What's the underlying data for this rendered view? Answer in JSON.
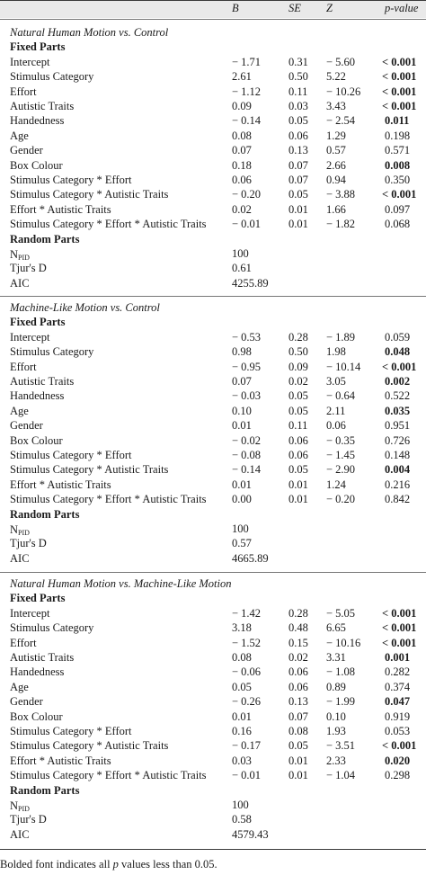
{
  "headers": {
    "b": "B",
    "se": "SE",
    "z": "Z",
    "p": "p-value"
  },
  "fixed_parts_label": "Fixed Parts",
  "random_parts_label": "Random Parts",
  "npid": {
    "main": "N",
    "sub": "PID"
  },
  "tjur_label": "Tjur's D",
  "aic_label": "AIC",
  "sections": [
    {
      "title": "Natural Human Motion vs. Control",
      "rows": [
        {
          "label": "Intercept",
          "b": "− 1.71",
          "se": "0.31",
          "z": "− 5.60",
          "p": "< 0.001",
          "bold": true
        },
        {
          "label": "Stimulus Category",
          "b": "2.61",
          "se": "0.50",
          "z": "5.22",
          "p": "< 0.001",
          "bold": true
        },
        {
          "label": "Effort",
          "b": "− 1.12",
          "se": "0.11",
          "z": "− 10.26",
          "p": "< 0.001",
          "bold": true
        },
        {
          "label": "Autistic Traits",
          "b": "0.09",
          "se": "0.03",
          "z": "3.43",
          "p": "< 0.001",
          "bold": true
        },
        {
          "label": "Handedness",
          "b": "− 0.14",
          "se": "0.05",
          "z": "− 2.54",
          "p": "0.011",
          "bold": true
        },
        {
          "label": "Age",
          "b": "0.08",
          "se": "0.06",
          "z": "1.29",
          "p": "0.198",
          "bold": false
        },
        {
          "label": "Gender",
          "b": "0.07",
          "se": "0.13",
          "z": "0.57",
          "p": "0.571",
          "bold": false
        },
        {
          "label": "Box Colour",
          "b": "0.18",
          "se": "0.07",
          "z": "2.66",
          "p": "0.008",
          "bold": true
        },
        {
          "label": "Stimulus Category * Effort",
          "b": "0.06",
          "se": "0.07",
          "z": "0.94",
          "p": "0.350",
          "bold": false
        },
        {
          "label": "Stimulus Category * Autistic Traits",
          "b": "− 0.20",
          "se": "0.05",
          "z": "− 3.88",
          "p": "< 0.001",
          "bold": true
        },
        {
          "label": "Effort * Autistic Traits",
          "b": "0.02",
          "se": "0.01",
          "z": "1.66",
          "p": "0.097",
          "bold": false
        },
        {
          "label": "Stimulus Category * Effort * Autistic Traits",
          "b": "− 0.01",
          "se": "0.01",
          "z": "− 1.82",
          "p": "0.068",
          "bold": false
        }
      ],
      "npid": "100",
      "tjur": "0.61",
      "aic": "4255.89"
    },
    {
      "title": "Machine-Like Motion vs. Control",
      "rows": [
        {
          "label": "Intercept",
          "b": "− 0.53",
          "se": "0.28",
          "z": "− 1.89",
          "p": "0.059",
          "bold": false
        },
        {
          "label": "Stimulus Category",
          "b": "0.98",
          "se": "0.50",
          "z": "1.98",
          "p": "0.048",
          "bold": true
        },
        {
          "label": "Effort",
          "b": "− 0.95",
          "se": "0.09",
          "z": "− 10.14",
          "p": "< 0.001",
          "bold": true
        },
        {
          "label": "Autistic Traits",
          "b": "0.07",
          "se": "0.02",
          "z": "3.05",
          "p": "0.002",
          "bold": true
        },
        {
          "label": "Handedness",
          "b": "− 0.03",
          "se": "0.05",
          "z": "− 0.64",
          "p": "0.522",
          "bold": false
        },
        {
          "label": "Age",
          "b": "0.10",
          "se": "0.05",
          "z": "2.11",
          "p": "0.035",
          "bold": true
        },
        {
          "label": "Gender",
          "b": "0.01",
          "se": "0.11",
          "z": "0.06",
          "p": "0.951",
          "bold": false
        },
        {
          "label": "Box Colour",
          "b": "− 0.02",
          "se": "0.06",
          "z": "− 0.35",
          "p": "0.726",
          "bold": false
        },
        {
          "label": "Stimulus Category * Effort",
          "b": "− 0.08",
          "se": "0.06",
          "z": "− 1.45",
          "p": "0.148",
          "bold": false
        },
        {
          "label": "Stimulus Category * Autistic Traits",
          "b": "− 0.14",
          "se": "0.05",
          "z": "− 2.90",
          "p": "0.004",
          "bold": true
        },
        {
          "label": "Effort * Autistic Traits",
          "b": "0.01",
          "se": "0.01",
          "z": "1.24",
          "p": "0.216",
          "bold": false
        },
        {
          "label": "Stimulus Category * Effort * Autistic Traits",
          "b": "0.00",
          "se": "0.01",
          "z": "− 0.20",
          "p": "0.842",
          "bold": false
        }
      ],
      "npid": "100",
      "tjur": "0.57",
      "aic": "4665.89"
    },
    {
      "title": "Natural Human Motion vs. Machine-Like Motion",
      "rows": [
        {
          "label": "Intercept",
          "b": "− 1.42",
          "se": "0.28",
          "z": "− 5.05",
          "p": "< 0.001",
          "bold": true
        },
        {
          "label": "Stimulus Category",
          "b": "3.18",
          "se": "0.48",
          "z": "6.65",
          "p": "< 0.001",
          "bold": true
        },
        {
          "label": "Effort",
          "b": "− 1.52",
          "se": "0.15",
          "z": "− 10.16",
          "p": "< 0.001",
          "bold": true
        },
        {
          "label": "Autistic Traits",
          "b": "0.08",
          "se": "0.02",
          "z": "3.31",
          "p": "0.001",
          "bold": true
        },
        {
          "label": "Handedness",
          "b": "− 0.06",
          "se": "0.06",
          "z": "− 1.08",
          "p": "0.282",
          "bold": false
        },
        {
          "label": "Age",
          "b": "0.05",
          "se": "0.06",
          "z": "0.89",
          "p": "0.374",
          "bold": false
        },
        {
          "label": "Gender",
          "b": "− 0.26",
          "se": "0.13",
          "z": "− 1.99",
          "p": "0.047",
          "bold": true
        },
        {
          "label": "Box Colour",
          "b": "0.01",
          "se": "0.07",
          "z": "0.10",
          "p": "0.919",
          "bold": false
        },
        {
          "label": "Stimulus Category * Effort",
          "b": "0.16",
          "se": "0.08",
          "z": "1.93",
          "p": "0.053",
          "bold": false
        },
        {
          "label": "Stimulus Category * Autistic Traits",
          "b": "− 0.17",
          "se": "0.05",
          "z": "− 3.51",
          "p": "< 0.001",
          "bold": true
        },
        {
          "label": "Effort * Autistic Traits",
          "b": "0.03",
          "se": "0.01",
          "z": "2.33",
          "p": "0.020",
          "bold": true
        },
        {
          "label": "Stimulus Category * Effort * Autistic Traits",
          "b": "− 0.01",
          "se": "0.01",
          "z": "− 1.04",
          "p": "0.298",
          "bold": false
        }
      ],
      "npid": "100",
      "tjur": "0.58",
      "aic": "4579.43"
    }
  ],
  "footnote": "Bolded font indicates all p values less than 0.05."
}
